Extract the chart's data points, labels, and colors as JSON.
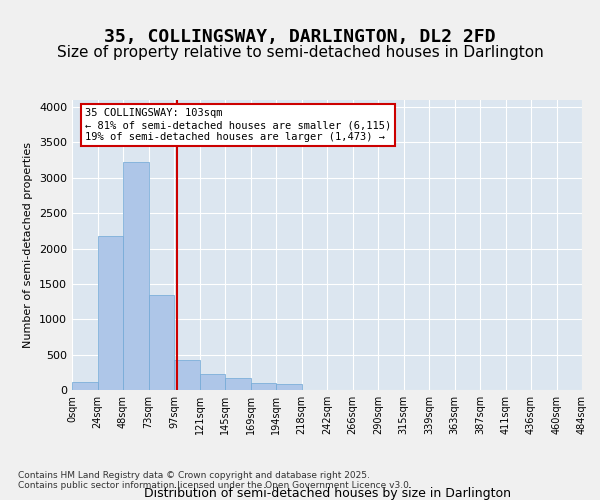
{
  "title_line1": "35, COLLINGSWAY, DARLINGTON, DL2 2FD",
  "title_line2": "Size of property relative to semi-detached houses in Darlington",
  "xlabel": "Distribution of semi-detached houses by size in Darlington",
  "ylabel": "Number of semi-detached properties",
  "footnote": "Contains HM Land Registry data © Crown copyright and database right 2025.\nContains public sector information licensed under the Open Government Licence v3.0.",
  "bin_labels": [
    "0sqm",
    "24sqm",
    "48sqm",
    "73sqm",
    "97sqm",
    "121sqm",
    "145sqm",
    "169sqm",
    "194sqm",
    "218sqm",
    "242sqm",
    "266sqm",
    "290sqm",
    "315sqm",
    "339sqm",
    "363sqm",
    "387sqm",
    "411sqm",
    "436sqm",
    "460sqm",
    "484sqm"
  ],
  "bar_values": [
    110,
    2175,
    3225,
    1340,
    420,
    225,
    170,
    100,
    80,
    0,
    0,
    0,
    0,
    0,
    0,
    0,
    0,
    0,
    0,
    0
  ],
  "bar_color": "#aec6e8",
  "bar_edge_color": "#6fa8d6",
  "vline_x": 4.1,
  "annotation_title": "35 COLLINGSWAY: 103sqm",
  "annotation_line1": "← 81% of semi-detached houses are smaller (6,115)",
  "annotation_line2": "19% of semi-detached houses are larger (1,473) →",
  "annotation_box_color": "#ffffff",
  "annotation_box_edge": "#cc0000",
  "vline_color": "#cc0000",
  "ylim": [
    0,
    4100
  ],
  "yticks": [
    0,
    500,
    1000,
    1500,
    2000,
    2500,
    3000,
    3500,
    4000
  ],
  "plot_bg_color": "#dce6f0",
  "grid_color": "#ffffff",
  "title_fontsize": 13,
  "subtitle_fontsize": 11
}
